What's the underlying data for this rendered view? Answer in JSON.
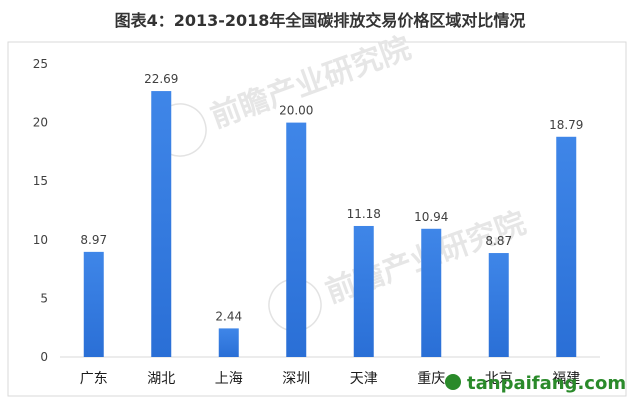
{
  "chart_data": {
    "type": "bar",
    "title": "图表4：2013-2018年全国碳排放交易价格区域对比情况",
    "categories": [
      "广东",
      "湖北",
      "上海",
      "深圳",
      "天津",
      "重庆",
      "北京",
      "福建"
    ],
    "values": [
      8.97,
      22.69,
      2.44,
      20.0,
      11.18,
      10.94,
      8.87,
      18.79
    ],
    "value_labels": [
      "8.97",
      "22.69",
      "2.44",
      "20.00",
      "11.18",
      "10.94",
      "8.87",
      "18.79"
    ],
    "yticks": [
      "0",
      "5",
      "10",
      "15",
      "20",
      "25"
    ],
    "ylim": [
      0,
      25
    ],
    "xlabel": "",
    "ylabel": "",
    "grid": false,
    "legend": "none",
    "bar_color_top": "#3f86e8",
    "bar_color_bottom": "#2a6fd6"
  },
  "watermark": {
    "text": "前瞻产业研究院",
    "site": "tanpaifang.com",
    "site_color": "#2a8a2a",
    "site_dot_color": "#c0392b"
  }
}
